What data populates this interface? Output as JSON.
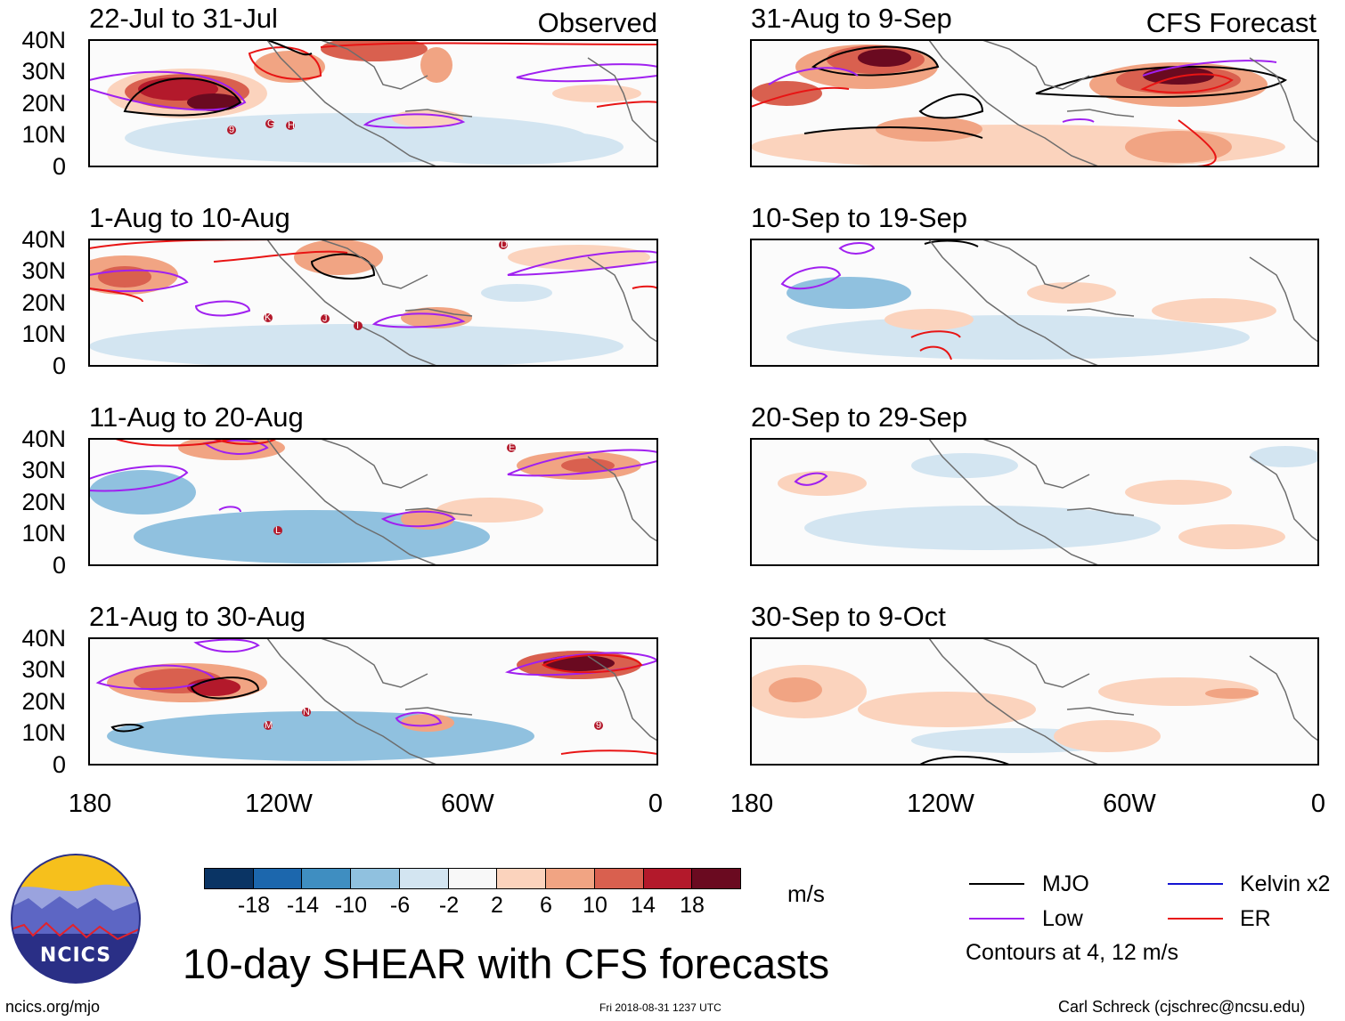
{
  "columns": {
    "left": "Observed",
    "right": "CFS Forecast"
  },
  "panels": [
    {
      "label": "22-Jul to 31-Jul"
    },
    {
      "label": "31-Aug to 9-Sep"
    },
    {
      "label": "1-Aug to 10-Aug"
    },
    {
      "label": "10-Sep to 19-Sep"
    },
    {
      "label": "11-Aug to 20-Aug"
    },
    {
      "label": "20-Sep to 29-Sep"
    },
    {
      "label": "21-Aug to 30-Aug"
    },
    {
      "label": "30-Sep to 9-Oct"
    }
  ],
  "y_axis": [
    "40N",
    "30N",
    "20N",
    "10N",
    "0"
  ],
  "x_axis": [
    "180",
    "120W",
    "60W",
    "0"
  ],
  "storms": {
    "p0": [
      "9",
      "G",
      "H"
    ],
    "p2": [
      "D",
      "K",
      "J",
      "I"
    ],
    "p4": [
      "E",
      "L"
    ],
    "p6": [
      "M",
      "N",
      "9"
    ]
  },
  "colorbar": {
    "labels": [
      "-18",
      "-14",
      "-10",
      "-6",
      "-2",
      "2",
      "6",
      "10",
      "14",
      "18"
    ],
    "colors": [
      "#0a3464",
      "#1c67ad",
      "#3f8ec1",
      "#90c1df",
      "#d3e5f1",
      "#f8f8f8",
      "#fbd3bd",
      "#f1a483",
      "#d9604f",
      "#b3192b",
      "#6a0a20"
    ],
    "units": "m/s"
  },
  "legend": {
    "items": [
      {
        "label": "MJO",
        "color": "#000000"
      },
      {
        "label": "Kelvin x2",
        "color": "#1414d2"
      },
      {
        "label": "Low",
        "color": "#a020f0"
      },
      {
        "label": "ER",
        "color": "#e81414"
      }
    ],
    "note": "Contours at 4, 12 m/s"
  },
  "title": "10-day SHEAR with CFS forecasts",
  "logo_text": "NCICS",
  "footer": {
    "left": "ncics.org/mjo",
    "center": "Fri 2018-08-31 1237 UTC",
    "right": "Carl Schreck (cjschrec@ncsu.edu)"
  }
}
